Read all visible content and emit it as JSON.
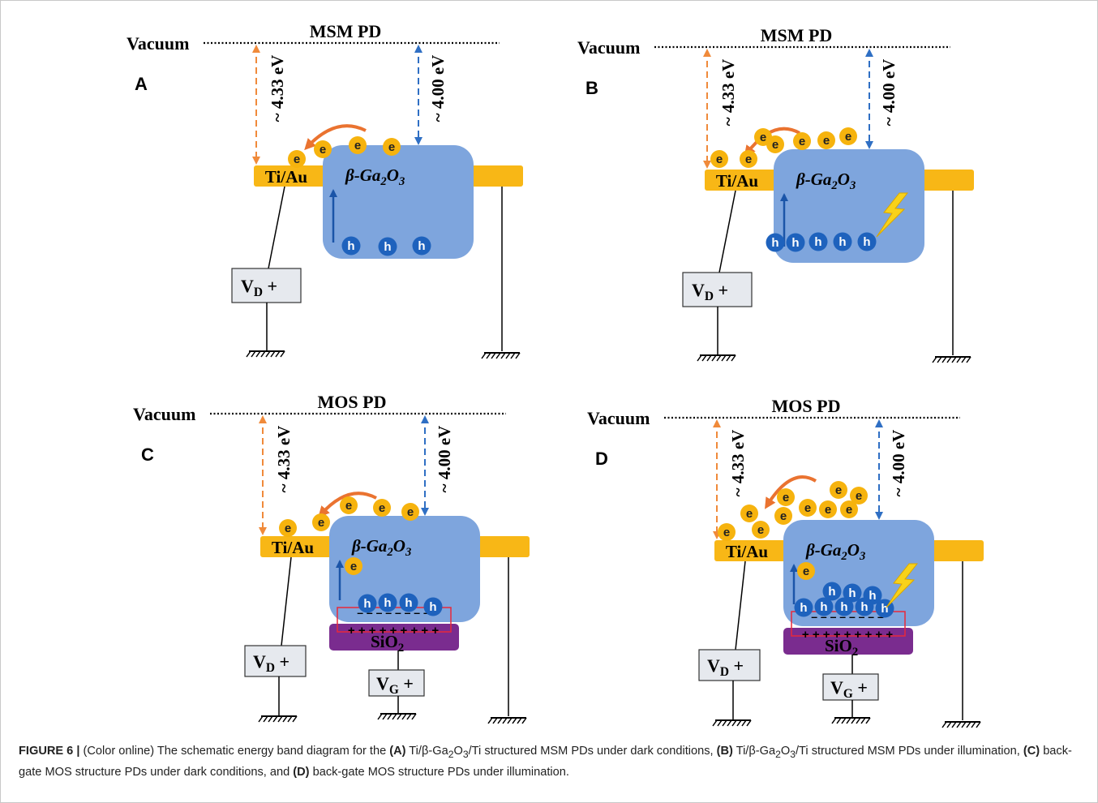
{
  "panels": [
    {
      "letter": "A",
      "title": "MSM PD",
      "vacuum": "Vacuum",
      "metal_gap": "~ 4.33 eV",
      "semiconductor_gap": "~ 4.00 eV",
      "metal": "Ti/Au",
      "semiconductor": [
        "β-Ga",
        "2",
        "O",
        "3"
      ],
      "electrons": [
        "e",
        "e",
        "e",
        "e"
      ],
      "holes": [
        "h",
        "h",
        "h"
      ],
      "drain": [
        "V",
        "D",
        " +"
      ]
    },
    {
      "letter": "B",
      "title": "MSM PD",
      "vacuum": "Vacuum",
      "metal_gap": "~ 4.33 eV",
      "semiconductor_gap": "~ 4.00 eV",
      "metal": "Ti/Au",
      "semiconductor": [
        "β-Ga",
        "2",
        "O",
        "3"
      ],
      "electrons": [
        "e",
        "e",
        "e",
        "e",
        "e",
        "e",
        "e"
      ],
      "holes": [
        "h",
        "h",
        "h",
        "h",
        "h"
      ],
      "drain": [
        "V",
        "D",
        " +"
      ]
    },
    {
      "letter": "C",
      "title": "MOS PD",
      "vacuum": "Vacuum",
      "metal_gap": "~ 4.33 eV",
      "semiconductor_gap": "~ 4.00 eV",
      "metal": "Ti/Au",
      "semiconductor": [
        "β-Ga",
        "2",
        "O",
        "3"
      ],
      "electrons": [
        "e",
        "e",
        "e",
        "e",
        "e",
        "e"
      ],
      "holes": [
        "h",
        "h",
        "h",
        "h"
      ],
      "negative_charges": "– – – – – – – –",
      "positive_charges": "+ + + + + + + + +",
      "oxide": [
        "SiO",
        "2"
      ],
      "drain": [
        "V",
        "D",
        " +"
      ],
      "gate": [
        "V",
        "G",
        " +"
      ]
    },
    {
      "letter": "D",
      "title": "MOS PD",
      "vacuum": "Vacuum",
      "metal_gap": "~ 4.33 eV",
      "semiconductor_gap": "~ 4.00 eV",
      "metal": "Ti/Au",
      "semiconductor": [
        "β-Ga",
        "2",
        "O",
        "3"
      ],
      "electrons": [
        "e",
        "e",
        "e",
        "e",
        "e",
        "e",
        "e",
        "e",
        "e",
        "e",
        "e"
      ],
      "holes": [
        "h",
        "h",
        "h",
        "h",
        "h",
        "h",
        "h",
        "h"
      ],
      "negative_charges": "– – – – – – – –",
      "positive_charges": "+ + + + + + + + +",
      "oxide": [
        "SiO",
        "2"
      ],
      "drain": [
        "V",
        "D",
        " +"
      ],
      "gate": [
        "V",
        "G",
        " +"
      ]
    }
  ],
  "caption": {
    "label": "FIGURE 6 |",
    "parts": [
      {
        "text": " (Color online) The schematic energy band diagram for the ",
        "style": "normal"
      },
      {
        "text": "(A)",
        "style": "bold"
      },
      {
        "text": " Ti/β-Ga",
        "style": "normal"
      },
      {
        "text": "2",
        "style": "sub"
      },
      {
        "text": "O",
        "style": "normal"
      },
      {
        "text": "3",
        "style": "sub"
      },
      {
        "text": "/Ti structured MSM PDs under dark conditions, ",
        "style": "normal"
      },
      {
        "text": "(B)",
        "style": "bold"
      },
      {
        "text": " Ti/β-Ga",
        "style": "normal"
      },
      {
        "text": "2",
        "style": "sub"
      },
      {
        "text": "O",
        "style": "normal"
      },
      {
        "text": "3",
        "style": "sub"
      },
      {
        "text": "/Ti structured MSM PDs under illumination, ",
        "style": "normal"
      },
      {
        "text": "(C)",
        "style": "bold"
      },
      {
        "text": " back-gate MOS structure PDs under dark conditions, and ",
        "style": "normal"
      },
      {
        "text": "(D)",
        "style": "bold"
      },
      {
        "text": " back-gate MOS structure PDs under illumination.",
        "style": "normal"
      }
    ]
  }
}
